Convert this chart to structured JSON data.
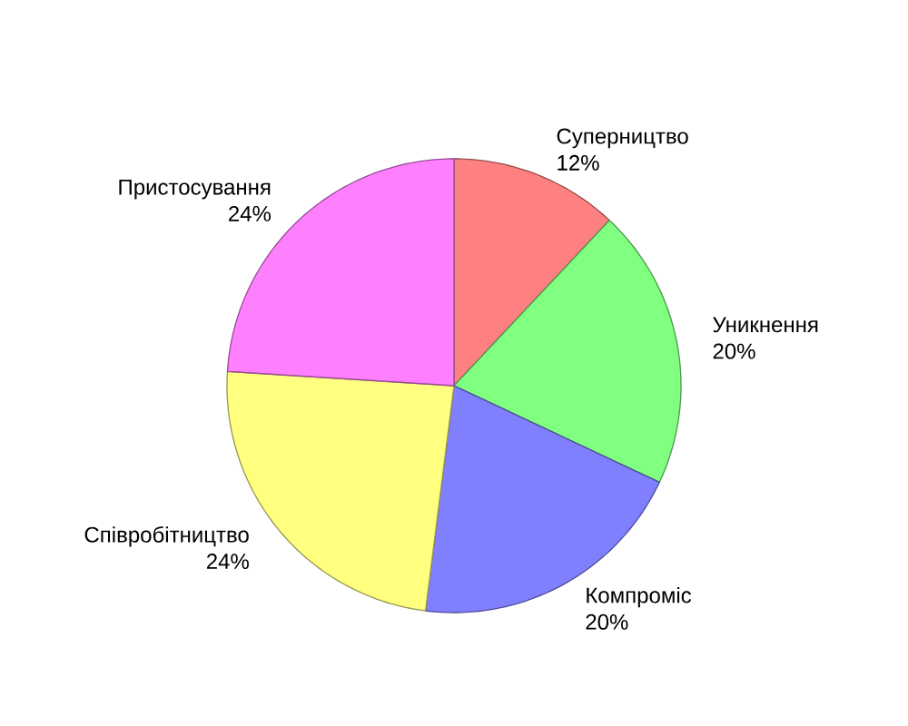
{
  "chart_data": {
    "type": "pie",
    "categories": [
      "Суперництво",
      "Уникнення",
      "Компроміс",
      "Співробітництво",
      "Пристосування"
    ],
    "values": [
      12,
      20,
      20,
      24,
      24
    ],
    "value_labels": [
      "12%",
      "20%",
      "20%",
      "24%",
      "24%"
    ],
    "colors": [
      "#ff8080",
      "#80ff80",
      "#8080ff",
      "#ffff80",
      "#ff80ff"
    ]
  }
}
